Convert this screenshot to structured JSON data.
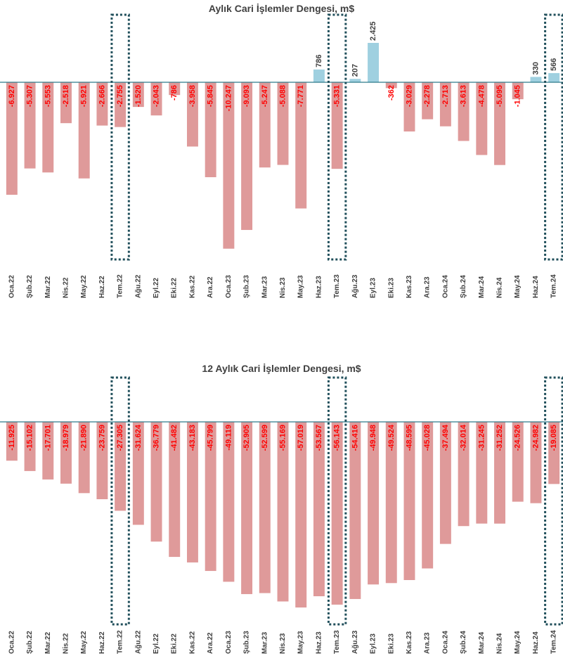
{
  "chart_data": [
    {
      "type": "bar",
      "title": "Aylık Cari İşlemler Dengesi, m$",
      "categories": [
        "Oca.22",
        "Şub.22",
        "Mar.22",
        "Nis.22",
        "May.22",
        "Haz.22",
        "Tem.22",
        "Ağu.22",
        "Eyl.22",
        "Eki.22",
        "Kas.22",
        "Ara.22",
        "Oca.23",
        "Şub.23",
        "Mar.23",
        "Nis.23",
        "May.23",
        "Haz.23",
        "Tem.23",
        "Ağu.23",
        "Eyl.23",
        "Eki.23",
        "Kas.23",
        "Ara.23",
        "Oca.24",
        "Şub.24",
        "Mar.24",
        "Nis.24",
        "May.24",
        "Haz.24",
        "Tem.24"
      ],
      "values": [
        -6927,
        -5307,
        -5553,
        -2518,
        -5921,
        -2666,
        -2755,
        -1520,
        -2043,
        -786,
        -3958,
        -5845,
        -10247,
        -9093,
        -5247,
        -5088,
        -7771,
        786,
        -5331,
        207,
        2425,
        -362,
        -3029,
        -2278,
        -2713,
        -3613,
        -4478,
        -5095,
        -1045,
        330,
        566
      ],
      "labels": [
        "-6.927",
        "-5.307",
        "-5.553",
        "-2.518",
        "-5.921",
        "-2.666",
        "-2.755",
        "-1.520",
        "-2.043",
        "-786",
        "-3.958",
        "-5.845",
        "-10.247",
        "-9.093",
        "-5.247",
        "-5.088",
        "-7.771",
        "786",
        "-5.331",
        "207",
        "2.425",
        "-362",
        "-3.029",
        "-2.278",
        "-2.713",
        "-3.613",
        "-4.478",
        "-5.095",
        "-1.045",
        "330",
        "566"
      ],
      "highlight_categories": [
        "Tem.22",
        "Tem.23",
        "Tem.24"
      ],
      "colors": {
        "negative": "#df9a9a",
        "positive": "#9fd0e0",
        "negative_label": "#ff0000",
        "positive_label": "#404040",
        "axis": "#2e7a8a",
        "highlight_box": "#1f4e5a"
      },
      "grid": false
    },
    {
      "type": "bar",
      "title": "12 Aylık Cari İşlemler Dengesi, m$",
      "categories": [
        "Oca.22",
        "Şub.22",
        "Mar.22",
        "Nis.22",
        "May.22",
        "Haz.22",
        "Tem.22",
        "Ağu.22",
        "Eyl.22",
        "Eki.22",
        "Kas.22",
        "Ara.22",
        "Oca.23",
        "Şub.23",
        "Mar.23",
        "Nis.23",
        "May.23",
        "Haz.23",
        "Tem.23",
        "Ağu.23",
        "Eyl.23",
        "Eki.23",
        "Kas.23",
        "Ara.23",
        "Oca.24",
        "Şub.24",
        "Mar.24",
        "Nis.24",
        "May.24",
        "Haz.24",
        "Tem.24"
      ],
      "values": [
        -11925,
        -15102,
        -17701,
        -18979,
        -21890,
        -23759,
        -27305,
        -31624,
        -36779,
        -41482,
        -43183,
        -45799,
        -49119,
        -52905,
        -52599,
        -55169,
        -57019,
        -53567,
        -56143,
        -54416,
        -49948,
        -49524,
        -48595,
        -45028,
        -37494,
        -32014,
        -31245,
        -31252,
        -24526,
        -24982,
        -19085
      ],
      "labels": [
        "-11.925",
        "-15.102",
        "-17.701",
        "-18.979",
        "-21.890",
        "-23.759",
        "-27.305",
        "-31.624",
        "-36.779",
        "-41.482",
        "-43.183",
        "-45.799",
        "-49.119",
        "-52.905",
        "-52.599",
        "-55.169",
        "-57.019",
        "-53.567",
        "-56.143",
        "-54.416",
        "-49.948",
        "-49.524",
        "-48.595",
        "-45.028",
        "-37.494",
        "-32.014",
        "-31.245",
        "-31.252",
        "-24.526",
        "-24.982",
        "-19.085"
      ],
      "highlight_categories": [
        "Tem.22",
        "Tem.23",
        "Tem.24"
      ],
      "colors": {
        "negative": "#df9a9a",
        "negative_label": "#ff0000",
        "axis": "#2e7a8a",
        "highlight_box": "#1f4e5a"
      },
      "grid": false
    }
  ]
}
